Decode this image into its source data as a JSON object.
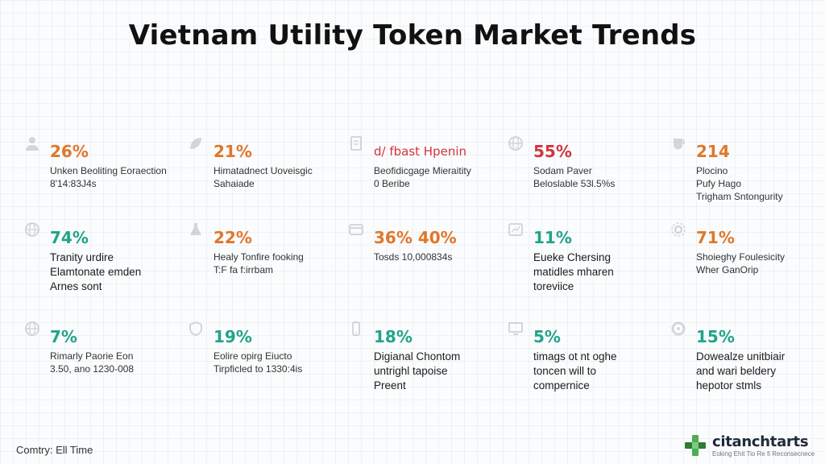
{
  "title": "Vietnam Utility Token Market Trends",
  "colors": {
    "orange": "#e0772a",
    "red": "#d2343e",
    "teal": "#22a38a"
  },
  "cards": [
    {
      "icon": "person-icon",
      "value": "26%",
      "color": "orange",
      "lines": [
        "Unken Beoliting Eoraection",
        "8'14:83J4s"
      ]
    },
    {
      "icon": "leaf-icon",
      "value": "21%",
      "color": "orange",
      "lines": [
        "Himatadnect Uoveisgic",
        "Sahaiade"
      ]
    },
    {
      "icon": "document-icon",
      "value": "d/ fbast Hpenin",
      "color": "red",
      "lines": [
        "Beofidicgage Mieraitity",
        "0 Beribe"
      ]
    },
    {
      "icon": "globe-icon",
      "value": "55%",
      "color": "red",
      "lines": [
        "Sodam Paver",
        "Beloslable 53l.5%s"
      ]
    },
    {
      "icon": "cup-icon",
      "value": "214",
      "color": "orange",
      "lines": [
        "Plocino",
        "Pufy Hago",
        "Trigham Sntongurity"
      ]
    },
    {
      "icon": "globe-icon",
      "value": "74%",
      "color": "teal",
      "lines": [
        "Tranity urdire",
        "Elamtonate emden",
        "Arnes sont"
      ]
    },
    {
      "icon": "flask-icon",
      "value": "22%",
      "color": "orange",
      "lines": [
        "Healy Tonfire fooking",
        "T:F fa f:irrbam"
      ]
    },
    {
      "icon": "card-icon",
      "value": "36% 40%",
      "color": "orange",
      "lines": [
        "Tosds 10,000834s"
      ]
    },
    {
      "icon": "chart-icon",
      "value": "11%",
      "color": "teal",
      "lines": [
        "Eueke Chersing",
        "matidles mharen",
        "toreviice"
      ]
    },
    {
      "icon": "gear-icon",
      "value": "71%",
      "color": "orange",
      "lines": [
        "Shoieghy Foulesicity",
        "Wher GanOrip"
      ]
    },
    {
      "icon": "globe-icon",
      "value": "7%",
      "color": "teal",
      "lines": [
        "Rimarly Paorie Eon",
        "3.50, ano 1230-008"
      ]
    },
    {
      "icon": "shield-icon",
      "value": "19%",
      "color": "teal",
      "lines": [
        "Eolire opirg Eiucto",
        "Tirpficled to 1330:4is"
      ]
    },
    {
      "icon": "phone-icon",
      "value": "18%",
      "color": "teal",
      "lines": [
        "Digianal Chontom",
        "untrighl tapoise",
        "Preent"
      ]
    },
    {
      "icon": "monitor-icon",
      "value": "5%",
      "color": "teal",
      "lines": [
        "timags ot nt oghe",
        "toncen will to",
        "compernice"
      ]
    },
    {
      "icon": "ring-icon",
      "value": "15%",
      "color": "teal",
      "lines": [
        "Dowealze unitbiair",
        "and wari beldery",
        "hepotor stmls"
      ]
    }
  ],
  "footer": {
    "left": "Comtry: Ell Time"
  },
  "brand": {
    "name": "citanchtarts",
    "tagline": "Eoking Ehit Tio Re fi Reconsecnece"
  }
}
